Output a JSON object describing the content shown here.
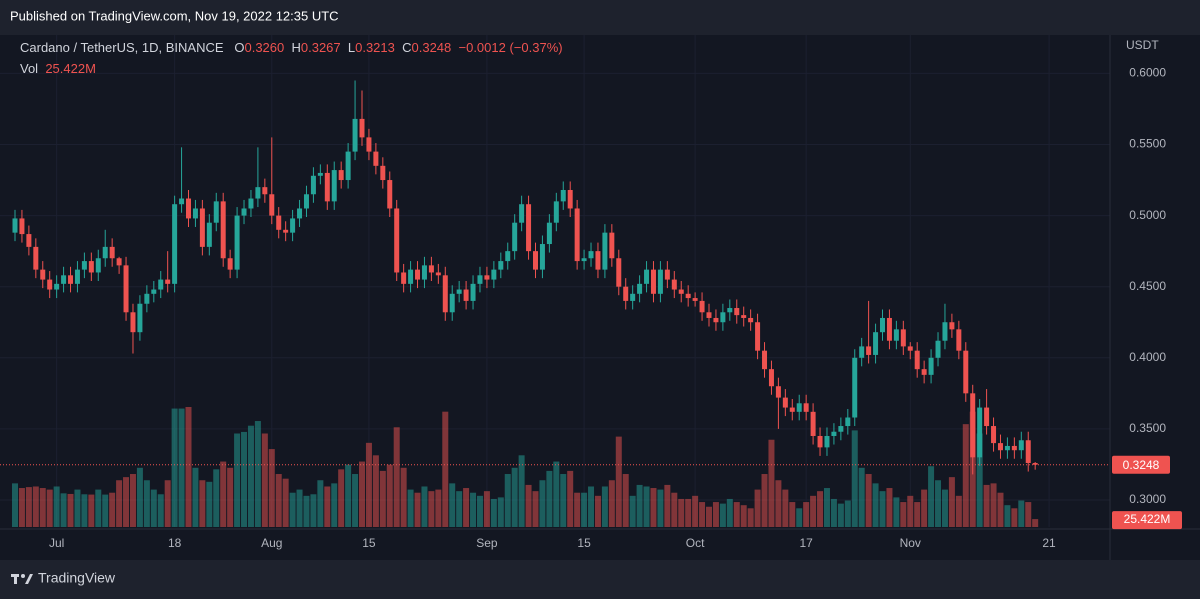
{
  "header": {
    "published": "Published on TradingView.com, Nov 19, 2022 12:35 UTC",
    "brand": "TradingView"
  },
  "chart_data": {
    "type": "candlestick",
    "symbol": "Cardano / TetherUS, 1D, BINANCE",
    "ohlc_keys": [
      "O",
      "H",
      "L",
      "C"
    ],
    "open_label": "0.3260",
    "change": "−0.0012 (−0.37%)",
    "volume_title": "Vol",
    "y_axis_label": "USDT",
    "up_color": "#26a69a",
    "down_color": "#ef5350",
    "ylim": [
      0.281,
      0.627
    ],
    "yticks": [
      {
        "value": 0.3,
        "label": "0.3000"
      },
      {
        "value": 0.35,
        "label": "0.3500"
      },
      {
        "value": 0.4,
        "label": "0.4000"
      },
      {
        "value": 0.45,
        "label": "0.4500"
      },
      {
        "value": 0.5,
        "label": "0.5000"
      },
      {
        "value": 0.55,
        "label": "0.5500"
      },
      {
        "value": 0.6,
        "label": "0.6000"
      }
    ],
    "grid": true,
    "categories": [
      null,
      null,
      null,
      null,
      null,
      null,
      "Jul",
      null,
      null,
      null,
      null,
      null,
      null,
      null,
      null,
      null,
      null,
      null,
      null,
      null,
      null,
      null,
      null,
      "18",
      null,
      null,
      null,
      null,
      null,
      null,
      null,
      null,
      null,
      null,
      null,
      null,
      null,
      "Aug",
      null,
      null,
      null,
      null,
      null,
      null,
      null,
      null,
      null,
      null,
      null,
      null,
      null,
      "15",
      null,
      null,
      null,
      null,
      null,
      null,
      null,
      null,
      null,
      null,
      null,
      null,
      null,
      null,
      null,
      null,
      "Sep",
      null,
      null,
      null,
      null,
      null,
      null,
      null,
      null,
      null,
      null,
      null,
      null,
      null,
      "15",
      null,
      null,
      null,
      null,
      null,
      null,
      null,
      null,
      null,
      null,
      null,
      null,
      null,
      null,
      null,
      "Oct",
      null,
      null,
      null,
      null,
      null,
      null,
      null,
      null,
      null,
      null,
      null,
      null,
      null,
      null,
      null,
      "17",
      null,
      null,
      null,
      null,
      null,
      null,
      null,
      null,
      null,
      null,
      null,
      null,
      null,
      null,
      "Nov",
      null,
      null,
      null,
      null,
      null,
      null,
      null,
      null,
      null,
      null,
      null,
      null,
      null,
      null,
      null,
      null,
      null,
      null,
      null,
      "21"
    ],
    "open": [
      0.488,
      0.498,
      0.487,
      0.478,
      0.462,
      0.455,
      0.448,
      0.452,
      0.458,
      0.452,
      0.462,
      0.468,
      0.46,
      0.47,
      0.478,
      0.47,
      0.465,
      0.432,
      0.418,
      0.438,
      0.445,
      0.448,
      0.455,
      0.452,
      0.508,
      0.512,
      0.498,
      0.505,
      0.478,
      0.495,
      0.51,
      0.47,
      0.462,
      0.5,
      0.505,
      0.512,
      0.52,
      0.515,
      0.5,
      0.49,
      0.488,
      0.498,
      0.505,
      0.515,
      0.528,
      0.53,
      0.51,
      0.532,
      0.525,
      0.545,
      0.568,
      0.555,
      0.545,
      0.535,
      0.525,
      0.505,
      0.46,
      0.452,
      0.462,
      0.455,
      0.465,
      0.46,
      0.458,
      0.432,
      0.445,
      0.448,
      0.44,
      0.452,
      0.458,
      0.455,
      0.462,
      0.468,
      0.475,
      0.495,
      0.508,
      0.475,
      0.462,
      0.48,
      0.495,
      0.51,
      0.518,
      0.505,
      0.468,
      0.47,
      0.475,
      0.462,
      0.488,
      0.47,
      0.45,
      0.44,
      0.445,
      0.452,
      0.462,
      0.445,
      0.462,
      0.455,
      0.448,
      0.445,
      0.442,
      0.44,
      0.432,
      0.428,
      0.425,
      0.432,
      0.435,
      0.43,
      0.428,
      0.425,
      0.405,
      0.392,
      0.38,
      0.372,
      0.365,
      0.362,
      0.368,
      0.362,
      0.345,
      0.337,
      0.345,
      0.348,
      0.352,
      0.358,
      0.4,
      0.408,
      0.402,
      0.418,
      0.428,
      0.412,
      0.42,
      0.408,
      0.405,
      0.392,
      0.388,
      0.4,
      0.412,
      0.425,
      0.42,
      0.405,
      0.375,
      0.33,
      0.365,
      0.352,
      0.34,
      0.335,
      0.338,
      0.335,
      0.342,
      0.326,
      null,
      null
    ],
    "high": [
      0.504,
      0.504,
      0.493,
      0.484,
      0.468,
      0.461,
      0.458,
      0.464,
      0.464,
      0.468,
      0.474,
      0.474,
      0.476,
      0.49,
      0.484,
      0.471,
      0.471,
      0.438,
      0.444,
      0.451,
      0.454,
      0.461,
      0.475,
      0.514,
      0.548,
      0.518,
      0.511,
      0.511,
      0.501,
      0.516,
      0.516,
      0.476,
      0.506,
      0.511,
      0.518,
      0.548,
      0.526,
      0.555,
      0.506,
      0.496,
      0.504,
      0.511,
      0.521,
      0.534,
      0.536,
      0.536,
      0.538,
      0.538,
      0.551,
      0.595,
      0.588,
      0.561,
      0.551,
      0.541,
      0.531,
      0.511,
      0.466,
      0.468,
      0.468,
      0.471,
      0.471,
      0.466,
      0.464,
      0.451,
      0.454,
      0.454,
      0.458,
      0.464,
      0.464,
      0.468,
      0.474,
      0.481,
      0.501,
      0.514,
      0.514,
      0.481,
      0.486,
      0.501,
      0.516,
      0.524,
      0.524,
      0.511,
      0.476,
      0.481,
      0.481,
      0.494,
      0.494,
      0.476,
      0.456,
      0.451,
      0.458,
      0.468,
      0.468,
      0.468,
      0.468,
      0.461,
      0.454,
      0.451,
      0.446,
      0.446,
      0.438,
      0.434,
      0.438,
      0.441,
      0.441,
      0.436,
      0.434,
      0.431,
      0.411,
      0.398,
      0.386,
      0.378,
      0.371,
      0.374,
      0.374,
      0.368,
      0.351,
      0.351,
      0.354,
      0.358,
      0.364,
      0.406,
      0.414,
      0.44,
      0.424,
      0.434,
      0.434,
      0.426,
      0.426,
      0.411,
      0.411,
      0.398,
      0.406,
      0.418,
      0.438,
      0.431,
      0.426,
      0.411,
      0.381,
      0.371,
      0.378,
      0.358,
      0.346,
      0.344,
      0.344,
      0.348,
      0.348,
      0.3267,
      null,
      null
    ],
    "low": [
      0.482,
      0.481,
      0.472,
      0.456,
      0.449,
      0.442,
      0.442,
      0.446,
      0.446,
      0.446,
      0.456,
      0.454,
      0.454,
      0.464,
      0.464,
      0.459,
      0.426,
      0.403,
      0.412,
      0.432,
      0.439,
      0.442,
      0.446,
      0.446,
      0.502,
      0.492,
      0.492,
      0.472,
      0.472,
      0.489,
      0.464,
      0.456,
      0.456,
      0.494,
      0.499,
      0.506,
      0.509,
      0.494,
      0.484,
      0.482,
      0.482,
      0.492,
      0.499,
      0.509,
      0.522,
      0.504,
      0.504,
      0.519,
      0.519,
      0.539,
      0.549,
      0.539,
      0.529,
      0.519,
      0.499,
      0.454,
      0.446,
      0.446,
      0.449,
      0.449,
      0.454,
      0.452,
      0.426,
      0.426,
      0.439,
      0.434,
      0.434,
      0.446,
      0.449,
      0.449,
      0.456,
      0.462,
      0.469,
      0.489,
      0.469,
      0.456,
      0.456,
      0.474,
      0.489,
      0.504,
      0.499,
      0.462,
      0.462,
      0.464,
      0.456,
      0.456,
      0.464,
      0.444,
      0.434,
      0.434,
      0.439,
      0.446,
      0.439,
      0.439,
      0.449,
      0.442,
      0.439,
      0.436,
      0.436,
      0.426,
      0.422,
      0.419,
      0.419,
      0.426,
      0.424,
      0.422,
      0.419,
      0.399,
      0.386,
      0.374,
      0.35,
      0.359,
      0.356,
      0.356,
      0.356,
      0.339,
      0.331,
      0.331,
      0.339,
      0.342,
      0.346,
      0.352,
      0.394,
      0.396,
      0.396,
      0.412,
      0.406,
      0.406,
      0.402,
      0.399,
      0.386,
      0.382,
      0.382,
      0.394,
      0.406,
      0.414,
      0.399,
      0.369,
      0.318,
      0.324,
      0.346,
      0.334,
      0.329,
      0.329,
      0.329,
      0.329,
      0.32,
      0.3213,
      null,
      null
    ],
    "close": [
      0.498,
      0.487,
      0.478,
      0.462,
      0.455,
      0.448,
      0.452,
      0.458,
      0.452,
      0.462,
      0.468,
      0.46,
      0.47,
      0.478,
      0.47,
      0.465,
      0.432,
      0.418,
      0.438,
      0.445,
      0.448,
      0.455,
      0.452,
      0.508,
      0.512,
      0.498,
      0.505,
      0.478,
      0.495,
      0.51,
      0.47,
      0.462,
      0.5,
      0.505,
      0.512,
      0.52,
      0.515,
      0.5,
      0.49,
      0.488,
      0.498,
      0.505,
      0.515,
      0.528,
      0.53,
      0.51,
      0.532,
      0.525,
      0.545,
      0.568,
      0.555,
      0.545,
      0.535,
      0.525,
      0.505,
      0.46,
      0.452,
      0.462,
      0.455,
      0.465,
      0.46,
      0.458,
      0.432,
      0.445,
      0.448,
      0.44,
      0.452,
      0.458,
      0.455,
      0.462,
      0.468,
      0.475,
      0.495,
      0.508,
      0.475,
      0.462,
      0.48,
      0.495,
      0.51,
      0.518,
      0.505,
      0.468,
      0.47,
      0.475,
      0.462,
      0.488,
      0.47,
      0.45,
      0.44,
      0.445,
      0.452,
      0.462,
      0.445,
      0.462,
      0.455,
      0.448,
      0.445,
      0.442,
      0.44,
      0.432,
      0.428,
      0.425,
      0.432,
      0.435,
      0.43,
      0.428,
      0.425,
      0.405,
      0.392,
      0.38,
      0.372,
      0.365,
      0.362,
      0.368,
      0.362,
      0.345,
      0.337,
      0.345,
      0.348,
      0.352,
      0.358,
      0.4,
      0.408,
      0.402,
      0.418,
      0.428,
      0.412,
      0.42,
      0.408,
      0.405,
      0.392,
      0.388,
      0.4,
      0.412,
      0.425,
      0.42,
      0.405,
      0.375,
      0.33,
      0.365,
      0.352,
      0.34,
      0.335,
      0.338,
      0.335,
      0.342,
      0.326,
      0.3248,
      null,
      null
    ],
    "volume": {
      "last_label": "25.422M",
      "values": [
        140,
        125,
        128,
        130,
        125,
        120,
        130,
        108,
        106,
        120,
        105,
        104,
        120,
        104,
        110,
        150,
        160,
        170,
        190,
        150,
        120,
        105,
        150,
        380,
        380,
        385,
        190,
        150,
        145,
        185,
        210,
        190,
        300,
        305,
        325,
        340,
        300,
        250,
        170,
        155,
        110,
        120,
        100,
        105,
        150,
        130,
        140,
        185,
        200,
        170,
        210,
        270,
        230,
        180,
        200,
        320,
        190,
        120,
        110,
        130,
        115,
        120,
        370,
        140,
        115,
        125,
        110,
        100,
        115,
        90,
        95,
        170,
        190,
        230,
        135,
        115,
        150,
        180,
        210,
        170,
        180,
        110,
        110,
        130,
        100,
        130,
        150,
        290,
        170,
        100,
        135,
        130,
        125,
        120,
        135,
        110,
        90,
        90,
        100,
        80,
        65,
        80,
        75,
        90,
        80,
        70,
        60,
        120,
        170,
        280,
        150,
        120,
        80,
        60,
        80,
        100,
        115,
        125,
        90,
        75,
        85,
        310,
        190,
        170,
        140,
        115,
        125,
        95,
        80,
        100,
        80,
        120,
        195,
        150,
        120,
        160,
        100,
        330,
        370,
        300,
        135,
        140,
        110,
        70,
        60,
        85,
        80,
        25.422,
        null,
        null
      ]
    }
  }
}
